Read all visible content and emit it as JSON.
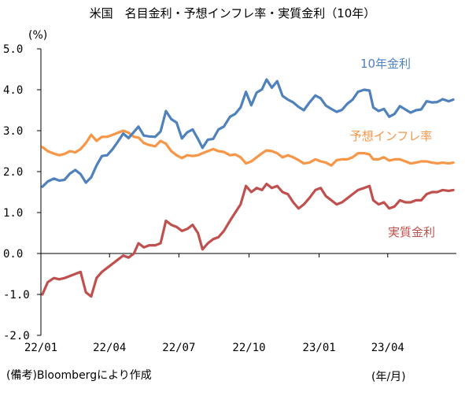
{
  "title": "米国　名目金利・予想インフレ率・実質金利（10年）",
  "chart_data": {
    "type": "line",
    "title": "米国　名目金利・予想インフレ率・実質金利（10年）",
    "ylabel": "(%)",
    "xlabel": "(年/月)",
    "ylim": [
      -2.0,
      5.0
    ],
    "yticks": [
      "5.0",
      "4.0",
      "3.0",
      "2.0",
      "1.0",
      "0.0",
      "-1.0",
      "-2.0"
    ],
    "ytick_values": [
      5.0,
      4.0,
      3.0,
      2.0,
      1.0,
      0.0,
      -1.0,
      -2.0
    ],
    "xticks": [
      "22/01",
      "22/04",
      "22/07",
      "22/10",
      "23/01",
      "23/04"
    ],
    "xtick_positions": [
      "2022-01-01",
      "2022-04-01",
      "2022-07-01",
      "2022-10-01",
      "2023-01-01",
      "2023-04-01"
    ],
    "xlim": [
      "2022-01-01",
      "2023-06-30"
    ],
    "grid": false,
    "legend": "inline labels",
    "series": [
      {
        "name": "10年金利",
        "color": "#4f81bd",
        "points": [
          [
            "2022-01-03",
            1.63
          ],
          [
            "2022-01-10",
            1.76
          ],
          [
            "2022-01-18",
            1.83
          ],
          [
            "2022-01-25",
            1.78
          ],
          [
            "2022-02-01",
            1.8
          ],
          [
            "2022-02-08",
            1.95
          ],
          [
            "2022-02-15",
            2.04
          ],
          [
            "2022-02-22",
            1.94
          ],
          [
            "2022-03-01",
            1.73
          ],
          [
            "2022-03-08",
            1.86
          ],
          [
            "2022-03-15",
            2.15
          ],
          [
            "2022-03-22",
            2.38
          ],
          [
            "2022-03-29",
            2.4
          ],
          [
            "2022-04-05",
            2.55
          ],
          [
            "2022-04-12",
            2.73
          ],
          [
            "2022-04-19",
            2.93
          ],
          [
            "2022-04-26",
            2.82
          ],
          [
            "2022-05-03",
            2.97
          ],
          [
            "2022-05-09",
            3.1
          ],
          [
            "2022-05-16",
            2.88
          ],
          [
            "2022-05-23",
            2.86
          ],
          [
            "2022-05-31",
            2.85
          ],
          [
            "2022-06-07",
            2.98
          ],
          [
            "2022-06-14",
            3.48
          ],
          [
            "2022-06-21",
            3.28
          ],
          [
            "2022-06-28",
            3.2
          ],
          [
            "2022-07-05",
            2.81
          ],
          [
            "2022-07-12",
            2.96
          ],
          [
            "2022-07-19",
            3.03
          ],
          [
            "2022-07-26",
            2.8
          ],
          [
            "2022-08-01",
            2.58
          ],
          [
            "2022-08-08",
            2.78
          ],
          [
            "2022-08-15",
            2.8
          ],
          [
            "2022-08-22",
            3.03
          ],
          [
            "2022-08-29",
            3.1
          ],
          [
            "2022-09-06",
            3.34
          ],
          [
            "2022-09-13",
            3.41
          ],
          [
            "2022-09-20",
            3.57
          ],
          [
            "2022-09-27",
            3.95
          ],
          [
            "2022-10-04",
            3.62
          ],
          [
            "2022-10-11",
            3.93
          ],
          [
            "2022-10-18",
            4.01
          ],
          [
            "2022-10-24",
            4.25
          ],
          [
            "2022-10-31",
            4.05
          ],
          [
            "2022-11-07",
            4.21
          ],
          [
            "2022-11-14",
            3.85
          ],
          [
            "2022-11-21",
            3.76
          ],
          [
            "2022-11-28",
            3.69
          ],
          [
            "2022-12-05",
            3.58
          ],
          [
            "2022-12-12",
            3.5
          ],
          [
            "2022-12-19",
            3.68
          ],
          [
            "2022-12-27",
            3.86
          ],
          [
            "2023-01-03",
            3.79
          ],
          [
            "2023-01-10",
            3.61
          ],
          [
            "2023-01-17",
            3.53
          ],
          [
            "2023-01-24",
            3.46
          ],
          [
            "2023-01-31",
            3.51
          ],
          [
            "2023-02-07",
            3.66
          ],
          [
            "2023-02-14",
            3.76
          ],
          [
            "2023-02-21",
            3.95
          ],
          [
            "2023-03-01",
            4.0
          ],
          [
            "2023-03-08",
            3.98
          ],
          [
            "2023-03-13",
            3.57
          ],
          [
            "2023-03-20",
            3.48
          ],
          [
            "2023-03-27",
            3.53
          ],
          [
            "2023-04-03",
            3.34
          ],
          [
            "2023-04-10",
            3.41
          ],
          [
            "2023-04-17",
            3.6
          ],
          [
            "2023-04-24",
            3.52
          ],
          [
            "2023-05-01",
            3.44
          ],
          [
            "2023-05-08",
            3.5
          ],
          [
            "2023-05-15",
            3.52
          ],
          [
            "2023-05-22",
            3.72
          ],
          [
            "2023-05-29",
            3.69
          ],
          [
            "2023-06-05",
            3.7
          ],
          [
            "2023-06-12",
            3.77
          ],
          [
            "2023-06-20",
            3.72
          ],
          [
            "2023-06-26",
            3.76
          ]
        ]
      },
      {
        "name": "予想インフレ率",
        "color": "#f79646",
        "points": [
          [
            "2022-01-03",
            2.6
          ],
          [
            "2022-01-10",
            2.5
          ],
          [
            "2022-01-18",
            2.44
          ],
          [
            "2022-01-25",
            2.4
          ],
          [
            "2022-02-01",
            2.43
          ],
          [
            "2022-02-08",
            2.5
          ],
          [
            "2022-02-15",
            2.47
          ],
          [
            "2022-02-22",
            2.55
          ],
          [
            "2022-03-01",
            2.7
          ],
          [
            "2022-03-08",
            2.9
          ],
          [
            "2022-03-15",
            2.75
          ],
          [
            "2022-03-22",
            2.85
          ],
          [
            "2022-03-29",
            2.85
          ],
          [
            "2022-04-05",
            2.9
          ],
          [
            "2022-04-12",
            2.95
          ],
          [
            "2022-04-19",
            3.0
          ],
          [
            "2022-04-26",
            2.95
          ],
          [
            "2022-05-03",
            2.85
          ],
          [
            "2022-05-09",
            2.83
          ],
          [
            "2022-05-16",
            2.7
          ],
          [
            "2022-05-23",
            2.65
          ],
          [
            "2022-05-31",
            2.62
          ],
          [
            "2022-06-07",
            2.75
          ],
          [
            "2022-06-14",
            2.68
          ],
          [
            "2022-06-21",
            2.5
          ],
          [
            "2022-06-28",
            2.4
          ],
          [
            "2022-07-05",
            2.33
          ],
          [
            "2022-07-12",
            2.4
          ],
          [
            "2022-07-19",
            2.38
          ],
          [
            "2022-07-26",
            2.4
          ],
          [
            "2022-08-01",
            2.45
          ],
          [
            "2022-08-08",
            2.5
          ],
          [
            "2022-08-15",
            2.55
          ],
          [
            "2022-08-22",
            2.5
          ],
          [
            "2022-08-29",
            2.48
          ],
          [
            "2022-09-06",
            2.4
          ],
          [
            "2022-09-13",
            2.42
          ],
          [
            "2022-09-20",
            2.35
          ],
          [
            "2022-09-27",
            2.2
          ],
          [
            "2022-10-04",
            2.25
          ],
          [
            "2022-10-11",
            2.35
          ],
          [
            "2022-10-18",
            2.45
          ],
          [
            "2022-10-24",
            2.52
          ],
          [
            "2022-10-31",
            2.5
          ],
          [
            "2022-11-07",
            2.45
          ],
          [
            "2022-11-14",
            2.35
          ],
          [
            "2022-11-21",
            2.4
          ],
          [
            "2022-11-28",
            2.35
          ],
          [
            "2022-12-05",
            2.28
          ],
          [
            "2022-12-12",
            2.2
          ],
          [
            "2022-12-19",
            2.22
          ],
          [
            "2022-12-27",
            2.3
          ],
          [
            "2023-01-03",
            2.25
          ],
          [
            "2023-01-10",
            2.22
          ],
          [
            "2023-01-17",
            2.15
          ],
          [
            "2023-01-24",
            2.28
          ],
          [
            "2023-01-31",
            2.3
          ],
          [
            "2023-02-07",
            2.3
          ],
          [
            "2023-02-14",
            2.35
          ],
          [
            "2023-02-21",
            2.45
          ],
          [
            "2023-03-01",
            2.45
          ],
          [
            "2023-03-08",
            2.42
          ],
          [
            "2023-03-13",
            2.3
          ],
          [
            "2023-03-20",
            2.3
          ],
          [
            "2023-03-27",
            2.35
          ],
          [
            "2023-04-03",
            2.27
          ],
          [
            "2023-04-10",
            2.3
          ],
          [
            "2023-04-17",
            2.3
          ],
          [
            "2023-04-24",
            2.25
          ],
          [
            "2023-05-01",
            2.2
          ],
          [
            "2023-05-08",
            2.22
          ],
          [
            "2023-05-15",
            2.25
          ],
          [
            "2023-05-22",
            2.25
          ],
          [
            "2023-05-29",
            2.22
          ],
          [
            "2023-06-05",
            2.2
          ],
          [
            "2023-06-12",
            2.22
          ],
          [
            "2023-06-20",
            2.2
          ],
          [
            "2023-06-26",
            2.22
          ]
        ]
      },
      {
        "name": "実質金利",
        "color": "#c0504d",
        "points": [
          [
            "2022-01-03",
            -1.0
          ],
          [
            "2022-01-10",
            -0.7
          ],
          [
            "2022-01-18",
            -0.6
          ],
          [
            "2022-01-25",
            -0.63
          ],
          [
            "2022-02-01",
            -0.6
          ],
          [
            "2022-02-08",
            -0.55
          ],
          [
            "2022-02-15",
            -0.5
          ],
          [
            "2022-02-22",
            -0.45
          ],
          [
            "2022-03-01",
            -0.95
          ],
          [
            "2022-03-08",
            -1.05
          ],
          [
            "2022-03-15",
            -0.6
          ],
          [
            "2022-03-22",
            -0.45
          ],
          [
            "2022-03-29",
            -0.35
          ],
          [
            "2022-04-05",
            -0.25
          ],
          [
            "2022-04-12",
            -0.15
          ],
          [
            "2022-04-19",
            -0.05
          ],
          [
            "2022-04-26",
            -0.1
          ],
          [
            "2022-05-03",
            0.0
          ],
          [
            "2022-05-09",
            0.25
          ],
          [
            "2022-05-16",
            0.15
          ],
          [
            "2022-05-23",
            0.2
          ],
          [
            "2022-05-31",
            0.2
          ],
          [
            "2022-06-07",
            0.25
          ],
          [
            "2022-06-14",
            0.8
          ],
          [
            "2022-06-21",
            0.7
          ],
          [
            "2022-06-28",
            0.65
          ],
          [
            "2022-07-05",
            0.55
          ],
          [
            "2022-07-12",
            0.6
          ],
          [
            "2022-07-19",
            0.7
          ],
          [
            "2022-07-26",
            0.5
          ],
          [
            "2022-08-01",
            0.1
          ],
          [
            "2022-08-08",
            0.25
          ],
          [
            "2022-08-15",
            0.35
          ],
          [
            "2022-08-22",
            0.4
          ],
          [
            "2022-08-29",
            0.55
          ],
          [
            "2022-09-06",
            0.8
          ],
          [
            "2022-09-13",
            1.0
          ],
          [
            "2022-09-20",
            1.2
          ],
          [
            "2022-09-27",
            1.65
          ],
          [
            "2022-10-04",
            1.5
          ],
          [
            "2022-10-11",
            1.6
          ],
          [
            "2022-10-18",
            1.55
          ],
          [
            "2022-10-24",
            1.7
          ],
          [
            "2022-10-31",
            1.6
          ],
          [
            "2022-11-07",
            1.65
          ],
          [
            "2022-11-14",
            1.5
          ],
          [
            "2022-11-21",
            1.45
          ],
          [
            "2022-11-28",
            1.25
          ],
          [
            "2022-12-05",
            1.1
          ],
          [
            "2022-12-12",
            1.2
          ],
          [
            "2022-12-19",
            1.35
          ],
          [
            "2022-12-27",
            1.55
          ],
          [
            "2023-01-03",
            1.6
          ],
          [
            "2023-01-10",
            1.4
          ],
          [
            "2023-01-17",
            1.3
          ],
          [
            "2023-01-24",
            1.2
          ],
          [
            "2023-01-31",
            1.25
          ],
          [
            "2023-02-07",
            1.35
          ],
          [
            "2023-02-14",
            1.45
          ],
          [
            "2023-02-21",
            1.55
          ],
          [
            "2023-03-01",
            1.6
          ],
          [
            "2023-03-08",
            1.65
          ],
          [
            "2023-03-13",
            1.3
          ],
          [
            "2023-03-20",
            1.2
          ],
          [
            "2023-03-27",
            1.25
          ],
          [
            "2023-04-03",
            1.1
          ],
          [
            "2023-04-10",
            1.15
          ],
          [
            "2023-04-17",
            1.3
          ],
          [
            "2023-04-24",
            1.25
          ],
          [
            "2023-05-01",
            1.25
          ],
          [
            "2023-05-08",
            1.3
          ],
          [
            "2023-05-15",
            1.3
          ],
          [
            "2023-05-22",
            1.45
          ],
          [
            "2023-05-29",
            1.5
          ],
          [
            "2023-06-05",
            1.5
          ],
          [
            "2023-06-12",
            1.55
          ],
          [
            "2023-06-20",
            1.53
          ],
          [
            "2023-06-26",
            1.55
          ]
        ]
      }
    ]
  },
  "source_note": "(備考)Bloombergにより作成",
  "x_unit": "(年/月)"
}
